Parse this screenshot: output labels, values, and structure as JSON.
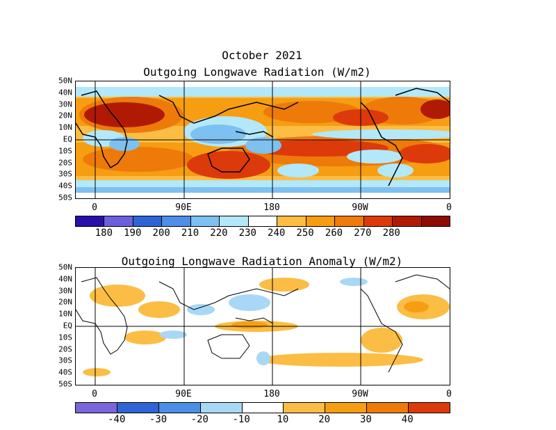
{
  "header": {
    "date": "October 2021"
  },
  "panels": [
    {
      "title": "Outgoing Longwave Radiation (W/m2)",
      "lat_labels": [
        "50N",
        "40N",
        "30N",
        "20N",
        "10N",
        "EQ",
        "10S",
        "20S",
        "30S",
        "40S",
        "50S"
      ],
      "lon_labels": [
        "0",
        "90E",
        "180",
        "90W",
        "0"
      ],
      "colorbar": {
        "colors": [
          "#2a0fa8",
          "#6b5fdb",
          "#2f64d6",
          "#4b8fe6",
          "#7ec0f0",
          "#b2e8fa",
          "#ffffff",
          "#fbbd44",
          "#f69d12",
          "#ee7a0a",
          "#dc3a0a",
          "#b01a05",
          "#8e0a04"
        ],
        "labels": [
          "180",
          "190",
          "200",
          "210",
          "220",
          "230",
          "240",
          "250",
          "260",
          "270",
          "280"
        ]
      }
    },
    {
      "title": "Outgoing Longwave Radiation Anomaly (W/m2)",
      "lat_labels": [
        "50N",
        "40N",
        "30N",
        "20N",
        "10N",
        "EQ",
        "10S",
        "20S",
        "30S",
        "40S",
        "50S"
      ],
      "lon_labels": [
        "0",
        "90E",
        "180",
        "90W",
        "0"
      ],
      "colorbar": {
        "colors": [
          "#7a66da",
          "#2f64d6",
          "#4b8fe6",
          "#a8d8f5",
          "#ffffff",
          "#fbbd44",
          "#f69d12",
          "#ee7a0a",
          "#dc3a0a"
        ],
        "labels": [
          "-40",
          "-30",
          "-20",
          "-10",
          "10",
          "20",
          "30",
          "40"
        ]
      }
    }
  ]
}
